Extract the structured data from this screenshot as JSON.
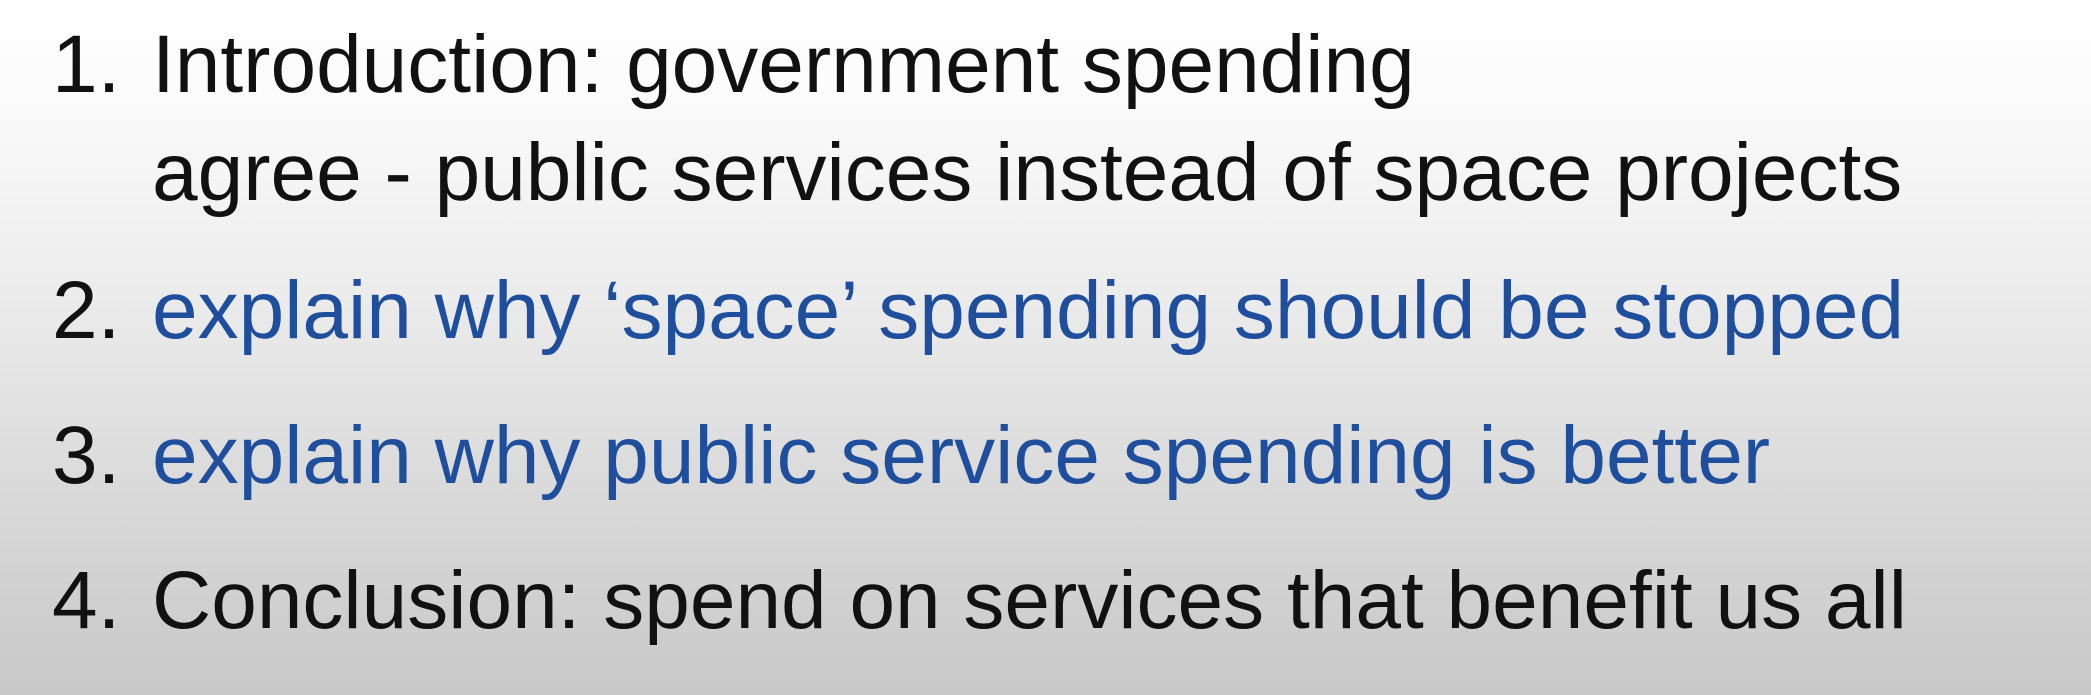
{
  "outline": {
    "items": [
      {
        "number": "1.",
        "lines": [
          "Introduction: government spending",
          "agree - public services instead of space projects"
        ],
        "color": "#111111"
      },
      {
        "number": "2.",
        "lines": [
          "explain why ‘space’ spending should be stopped"
        ],
        "color": "#1f4f9c"
      },
      {
        "number": "3.",
        "lines": [
          "explain why public service spending is better"
        ],
        "color": "#1f4f9c"
      },
      {
        "number": "4.",
        "lines": [
          "Conclusion: spend on services that benefit us all"
        ],
        "color": "#111111"
      }
    ]
  },
  "colors": {
    "text_dark": "#111111",
    "text_blue": "#1f4f9c"
  }
}
